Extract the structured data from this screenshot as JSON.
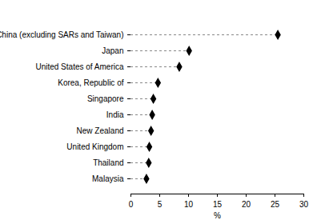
{
  "chart_data": {
    "type": "dot",
    "orientation": "horizontal",
    "x_label": "%",
    "categories": [
      "China (excluding SARs and Taiwan)",
      "Japan",
      "United States of America",
      "Korea, Republic of",
      "Singapore",
      "India",
      "New Zealand",
      "United Kingdom",
      "Thailand",
      "Malaysia"
    ],
    "values": [
      25.5,
      10.1,
      8.4,
      4.7,
      3.9,
      3.7,
      3.5,
      3.2,
      3.1,
      2.7
    ],
    "xlim": [
      0,
      30
    ],
    "xticks": [
      0,
      5,
      10,
      15,
      20,
      25,
      30
    ],
    "color": "#000000",
    "marker": "diamond",
    "line_style": "dashed",
    "grid": false
  }
}
